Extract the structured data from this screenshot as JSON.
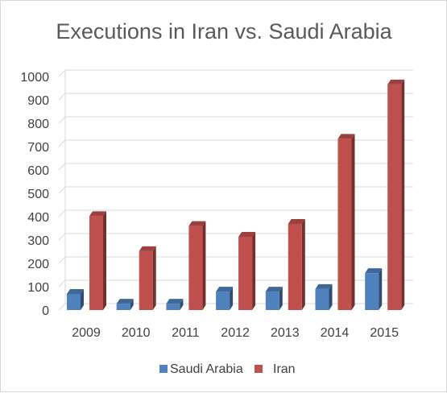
{
  "chart_data": {
    "type": "bar",
    "title": "Executions in Iran vs. Saudi Arabia",
    "categories": [
      "2009",
      "2010",
      "2011",
      "2012",
      "2013",
      "2014",
      "2015"
    ],
    "series": [
      {
        "name": "Saudi Arabia",
        "values": [
          69,
          27,
          27,
          79,
          79,
          90,
          158
        ],
        "color": "#4f81bd"
      },
      {
        "name": "Iran",
        "values": [
          402,
          252,
          360,
          314,
          369,
          733,
          966
        ],
        "color": "#c0504d"
      }
    ],
    "xlabel": "",
    "ylabel": "",
    "ylim": [
      0,
      1000
    ],
    "yticks": [
      "0",
      "100",
      "200",
      "300",
      "400",
      "500",
      "600",
      "700",
      "800",
      "900",
      "1000"
    ],
    "grid": true,
    "legend_position": "bottom",
    "style": "3d-columns"
  }
}
